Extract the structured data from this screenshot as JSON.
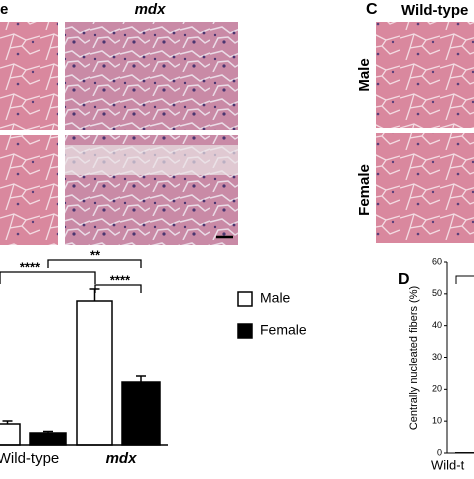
{
  "panel_a": {
    "col_labels": [
      "e",
      "mdx"
    ]
  },
  "panel_b": {
    "type": "bar",
    "categories": [
      "Wild-type",
      "mdx"
    ],
    "series": [
      {
        "name": "Male",
        "color": "#ffffff",
        "values": [
          7,
          48
        ],
        "errors": [
          1,
          4
        ]
      },
      {
        "name": "Female",
        "color": "#000000",
        "values": [
          4,
          21
        ],
        "errors": [
          0.5,
          2
        ]
      }
    ],
    "ylim": [
      0,
      60
    ],
    "significance": [
      "****",
      "**",
      "****"
    ]
  },
  "panel_c": {
    "label": "C",
    "title": "Wild-type",
    "row_labels": [
      "Male",
      "Female"
    ]
  },
  "panel_d": {
    "type": "bar",
    "label": "D",
    "y_label": "Centrally nucleated fibers (%)",
    "categories": [
      "Wild-t"
    ],
    "values": [
      0.3
    ],
    "color": "#000000",
    "ylim": [
      0,
      60
    ],
    "yticks": [
      0,
      10,
      20,
      30,
      40,
      50,
      60
    ]
  }
}
